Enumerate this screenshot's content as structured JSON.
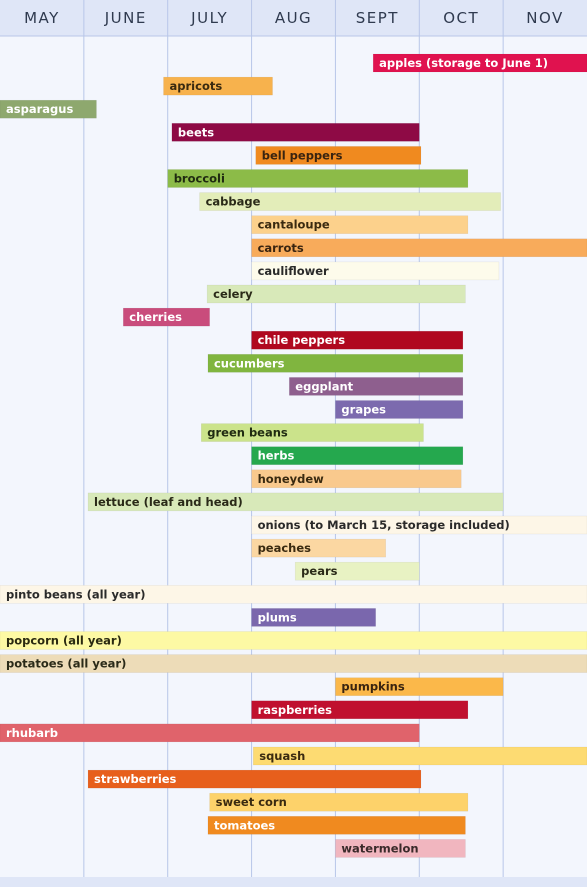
{
  "chart_data": {
    "type": "bar",
    "orientation": "horizontal-range",
    "months": [
      "MAY",
      "JUNE",
      "JULY",
      "AUG",
      "SEPT",
      "OCT",
      "NOV"
    ],
    "grid": true,
    "colors": {
      "header_bg": "#dfe6f7",
      "header_border": "#b8c6e8",
      "background": "#f3f6fd",
      "gridline": "#b8c6e8"
    },
    "items": [
      {
        "label": "apples (storage to June 1)",
        "start": 4.45,
        "end": 7.0,
        "color": "#e0124f",
        "text_color": "#ffffff"
      },
      {
        "label": "apricots",
        "start": 1.95,
        "end": 3.25,
        "color": "#f7b24d",
        "text_color": "#3a2a10"
      },
      {
        "label": "asparagus",
        "start": 0.0,
        "end": 1.15,
        "color": "#8ea86e",
        "text_color": "#ffffff"
      },
      {
        "label": "beets",
        "start": 2.05,
        "end": 5.0,
        "color": "#8e0a45",
        "text_color": "#ffffff"
      },
      {
        "label": "bell peppers",
        "start": 3.05,
        "end": 5.02,
        "color": "#f08a1f",
        "text_color": "#3a2410"
      },
      {
        "label": "broccoli",
        "start": 2.0,
        "end": 5.58,
        "color": "#8cbb48",
        "text_color": "#1f2a10"
      },
      {
        "label": "cabbage",
        "start": 2.38,
        "end": 5.97,
        "color": "#e3edb9",
        "text_color": "#2a2a18"
      },
      {
        "label": "cantaloupe",
        "start": 3.0,
        "end": 5.58,
        "color": "#fcd18c",
        "text_color": "#3a2a10"
      },
      {
        "label": "carrots",
        "start": 3.0,
        "end": 7.0,
        "color": "#f8ab5b",
        "text_color": "#3a2410"
      },
      {
        "label": "cauliflower",
        "start": 3.0,
        "end": 5.95,
        "color": "#fdfbeb",
        "text_color": "#2a2a2a"
      },
      {
        "label": "celery",
        "start": 2.47,
        "end": 5.55,
        "color": "#d8e9b9",
        "text_color": "#2a2a18"
      },
      {
        "label": "cherries",
        "start": 1.47,
        "end": 2.5,
        "color": "#c94c7c",
        "text_color": "#ffffff"
      },
      {
        "label": "chile peppers",
        "start": 3.0,
        "end": 5.52,
        "color": "#b0081f",
        "text_color": "#ffffff"
      },
      {
        "label": "cucumbers",
        "start": 2.48,
        "end": 5.52,
        "color": "#80b53f",
        "text_color": "#ffffff"
      },
      {
        "label": "eggplant",
        "start": 3.45,
        "end": 5.52,
        "color": "#8e5f8e",
        "text_color": "#ffffff"
      },
      {
        "label": "grapes",
        "start": 4.0,
        "end": 5.52,
        "color": "#7c6aae",
        "text_color": "#ffffff"
      },
      {
        "label": "green beans",
        "start": 2.4,
        "end": 5.05,
        "color": "#cbe38b",
        "text_color": "#1f2a10"
      },
      {
        "label": "herbs",
        "start": 3.0,
        "end": 5.52,
        "color": "#25a84e",
        "text_color": "#ffffff"
      },
      {
        "label": "honeydew",
        "start": 3.0,
        "end": 5.5,
        "color": "#f9c98d",
        "text_color": "#3a2a10"
      },
      {
        "label": "lettuce (leaf and head)",
        "start": 1.05,
        "end": 6.0,
        "color": "#d8e9b9",
        "text_color": "#2a2a18"
      },
      {
        "label": "onions (to March 15, storage included)",
        "start": 3.0,
        "end": 7.0,
        "color": "#fdf6e7",
        "text_color": "#2a2a2a"
      },
      {
        "label": "peaches",
        "start": 3.0,
        "end": 4.6,
        "color": "#fbd7a2",
        "text_color": "#3a2a10"
      },
      {
        "label": "pears",
        "start": 3.52,
        "end": 5.0,
        "color": "#e8f2c3",
        "text_color": "#2a2a18"
      },
      {
        "label": "pinto beans (all year)",
        "start": 0.0,
        "end": 7.0,
        "color": "#fdf6e7",
        "text_color": "#2a2a2a"
      },
      {
        "label": "plums",
        "start": 3.0,
        "end": 4.48,
        "color": "#7a67ad",
        "text_color": "#ffffff"
      },
      {
        "label": "popcorn (all year)",
        "start": 0.0,
        "end": 7.0,
        "color": "#fdf9a4",
        "text_color": "#2a2a10"
      },
      {
        "label": "potatoes (all year)",
        "start": 0.0,
        "end": 7.0,
        "color": "#eddcb8",
        "text_color": "#2a2a18"
      },
      {
        "label": "pumpkins",
        "start": 4.0,
        "end": 6.0,
        "color": "#fbb84a",
        "text_color": "#3a2410"
      },
      {
        "label": "raspberries",
        "start": 3.0,
        "end": 5.58,
        "color": "#c0102f",
        "text_color": "#ffffff"
      },
      {
        "label": "rhubarb",
        "start": 0.0,
        "end": 5.0,
        "color": "#e0636b",
        "text_color": "#ffffff"
      },
      {
        "label": "squash",
        "start": 3.02,
        "end": 7.0,
        "color": "#fddb72",
        "text_color": "#3a2a10"
      },
      {
        "label": "strawberries",
        "start": 1.05,
        "end": 5.02,
        "color": "#e75f1c",
        "text_color": "#ffffff"
      },
      {
        "label": "sweet corn",
        "start": 2.5,
        "end": 5.58,
        "color": "#fdd26a",
        "text_color": "#3a2a10"
      },
      {
        "label": "tomatoes",
        "start": 2.48,
        "end": 5.55,
        "color": "#f08a1f",
        "text_color": "#ffffff"
      },
      {
        "label": "watermelon",
        "start": 4.0,
        "end": 5.55,
        "color": "#f1b6bf",
        "text_color": "#3a2a2a"
      }
    ]
  }
}
